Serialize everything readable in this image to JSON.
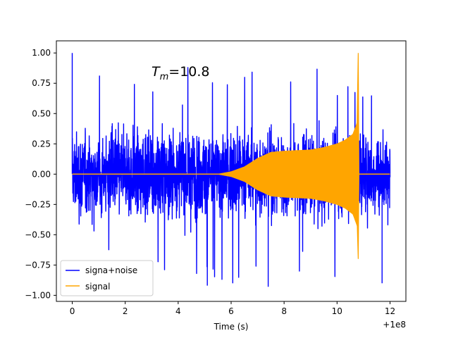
{
  "chart_data": {
    "type": "line",
    "xlabel": "Time (s)",
    "ylabel": "",
    "x_offset_label": "+1e8",
    "xlim": [
      -0.6,
      12.6
    ],
    "ylim": [
      -1.05,
      1.1
    ],
    "x_ticks": [
      0,
      2,
      4,
      6,
      8,
      10,
      12
    ],
    "x_tick_labels": [
      "0",
      "2",
      "4",
      "6",
      "8",
      "10",
      "12"
    ],
    "y_ticks": [
      1.0,
      0.75,
      0.5,
      0.25,
      0.0,
      -0.25,
      -0.5,
      -0.75,
      -1.0
    ],
    "y_tick_labels": [
      "1.00",
      "0.75",
      "0.50",
      "0.25",
      "0.00",
      "−0.25",
      "−0.50",
      "−0.75",
      "−1.00"
    ],
    "annotation": {
      "base": "T",
      "sub": "m",
      "text": "=10.8"
    },
    "legend_position": "lower-left",
    "series": [
      {
        "name": "signa+noise",
        "color": "#0000ff",
        "x_range": [
          0,
          12
        ],
        "y_range": [
          -0.97,
          1.0
        ],
        "typical_envelope": 0.5,
        "description_points": [
          {
            "x": 0.0,
            "y": 1.0
          },
          {
            "x": 5.1,
            "y": -0.92
          },
          {
            "x": 7.4,
            "y": -0.93
          },
          {
            "x": 11.7,
            "y": -0.9
          }
        ]
      },
      {
        "name": "signal",
        "color": "#ffa500",
        "x_range": [
          0,
          12
        ],
        "merger_time": 10.8,
        "peak": 1.0,
        "trough": -0.7,
        "envelope": [
          {
            "x": 0,
            "y": 0.0
          },
          {
            "x": 5.5,
            "y": 0.0
          },
          {
            "x": 6.0,
            "y": 0.02
          },
          {
            "x": 6.5,
            "y": 0.06
          },
          {
            "x": 7.0,
            "y": 0.13
          },
          {
            "x": 7.5,
            "y": 0.18
          },
          {
            "x": 8.0,
            "y": 0.19
          },
          {
            "x": 9.0,
            "y": 0.2
          },
          {
            "x": 9.5,
            "y": 0.22
          },
          {
            "x": 10.0,
            "y": 0.25
          },
          {
            "x": 10.3,
            "y": 0.28
          },
          {
            "x": 10.6,
            "y": 0.33
          },
          {
            "x": 10.8,
            "y": 0.45
          },
          {
            "x": 10.82,
            "y": 0.0
          },
          {
            "x": 12.0,
            "y": 0.0
          }
        ]
      }
    ]
  }
}
